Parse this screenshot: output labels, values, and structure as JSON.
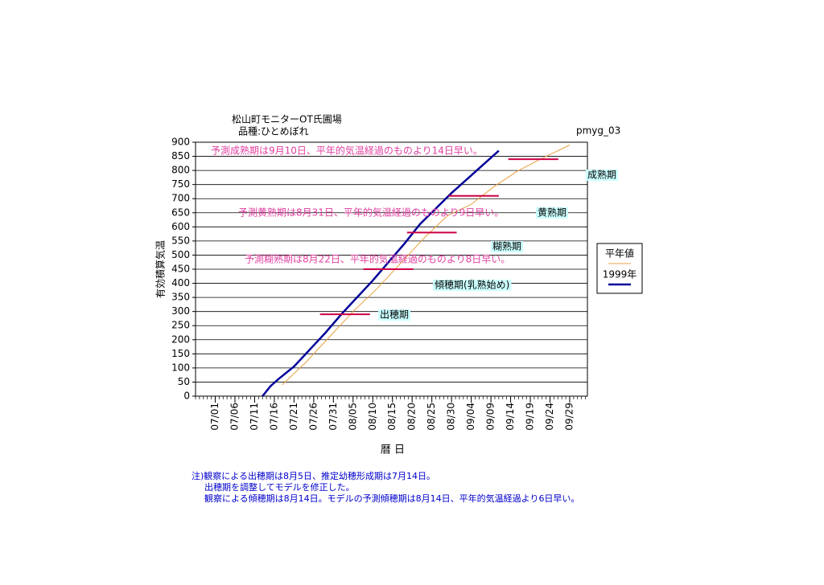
{
  "chart_data": {
    "type": "line",
    "title": "松山町モニターOT氏圃場",
    "subtitle": "品種:ひとめぼれ",
    "corner_label": "pmyg_03",
    "y_label": "有効積算気温",
    "x_label": "暦 日",
    "xlim": [
      177,
      276.5
    ],
    "xticks": [
      {
        "value": 182,
        "label": "07/01"
      },
      {
        "value": 187,
        "label": "07/06"
      },
      {
        "value": 192,
        "label": "07/11"
      },
      {
        "value": 197,
        "label": "07/16"
      },
      {
        "value": 202,
        "label": "07/21"
      },
      {
        "value": 207,
        "label": "07/26"
      },
      {
        "value": 212,
        "label": "07/31"
      },
      {
        "value": 217,
        "label": "08/05"
      },
      {
        "value": 222,
        "label": "08/10"
      },
      {
        "value": 227,
        "label": "08/15"
      },
      {
        "value": 232,
        "label": "08/20"
      },
      {
        "value": 237,
        "label": "08/25"
      },
      {
        "value": 242,
        "label": "08/30"
      },
      {
        "value": 247,
        "label": "09/04"
      },
      {
        "value": 252,
        "label": "09/09"
      },
      {
        "value": 257,
        "label": "09/14"
      },
      {
        "value": 262,
        "label": "09/19"
      },
      {
        "value": 267,
        "label": "09/24"
      },
      {
        "value": 272,
        "label": "09/29"
      }
    ],
    "ylim": [
      0,
      900
    ],
    "yticks": [
      0,
      50,
      100,
      150,
      200,
      250,
      300,
      350,
      400,
      450,
      500,
      550,
      600,
      650,
      700,
      750,
      800,
      850,
      900
    ],
    "grid": true,
    "series": [
      {
        "name": "平年値",
        "color": "#e8a040",
        "x": [
          199,
          205,
          211,
          217,
          223,
          229,
          235,
          241,
          247,
          253,
          259,
          266,
          272
        ],
        "values": [
          40,
          120,
          210,
          300,
          380,
          470,
          560,
          640,
          680,
          745,
          800,
          850,
          890
        ]
      },
      {
        "name": "1999年",
        "color": "#000099",
        "x": [
          194,
          196,
          198,
          202,
          206,
          210,
          214,
          218,
          222,
          226,
          230,
          234,
          238,
          242,
          246,
          250,
          254
        ],
        "values": [
          0,
          35,
          60,
          105,
          165,
          225,
          290,
          350,
          410,
          475,
          540,
          610,
          665,
          720,
          770,
          820,
          870
        ]
      }
    ],
    "stage_color": "#cc0044",
    "stages": [
      {
        "label": "出穂期",
        "value": 290,
        "x": [
          208.6,
          221.3
        ]
      },
      {
        "label": "傾穂期(乳熟始め)",
        "value": 450,
        "x": [
          219.6,
          232.3
        ]
      },
      {
        "label": "糊熟期",
        "value": 580,
        "x": [
          230.7,
          243.3
        ]
      },
      {
        "label": "黄熟期",
        "value": 710,
        "x": [
          241.3,
          254
        ]
      },
      {
        "label": "成熟期",
        "value": 840,
        "x": [
          256.4,
          269.1
        ]
      }
    ],
    "annotations": [
      "予測成熟期は9月10日、平年的気温経過のものより14日早い。",
      "予測黄熟期は8月31日、平年的気温経過のものより9日早い。",
      "予測糊熟期は8月22日、平年的気温経過のものより8日早い。"
    ],
    "notes": [
      "注)観察による出穂期は8月5日、推定幼穂形成期は7月14日。",
      "出穂期を調整してモデルを修正した。",
      "観察による傾穂期は8月14日。モデルの予測傾穂期は8月14日、平年的気温経過より6日早い。"
    ]
  }
}
